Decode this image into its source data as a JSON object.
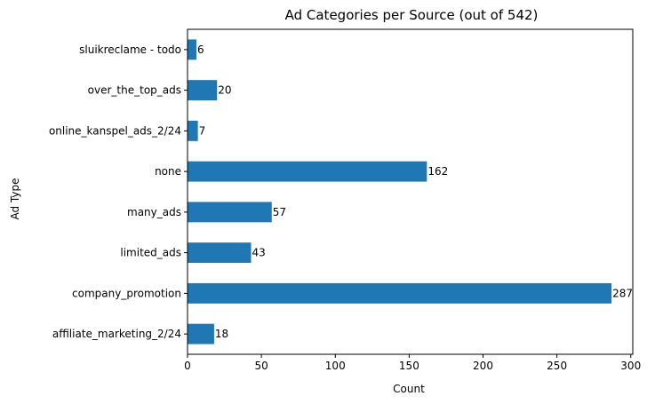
{
  "chart_data": {
    "type": "bar",
    "orientation": "horizontal",
    "title": "Ad Categories per Source (out of 542)",
    "xlabel": "Count",
    "ylabel": "Ad Type",
    "categories": [
      "sluikreclame - todo",
      "over_the_top_ads",
      "online_kanspel_ads_2/24",
      "none",
      "many_ads",
      "limited_ads",
      "company_promotion",
      "affiliate_marketing_2/24"
    ],
    "values": [
      6,
      20,
      7,
      162,
      57,
      43,
      287,
      18
    ],
    "xlim": [
      0,
      301.35
    ],
    "xticks": [
      0,
      50,
      100,
      150,
      200,
      250,
      300
    ],
    "bar_color": "#1f77b4",
    "grid": false,
    "legend": "none"
  }
}
